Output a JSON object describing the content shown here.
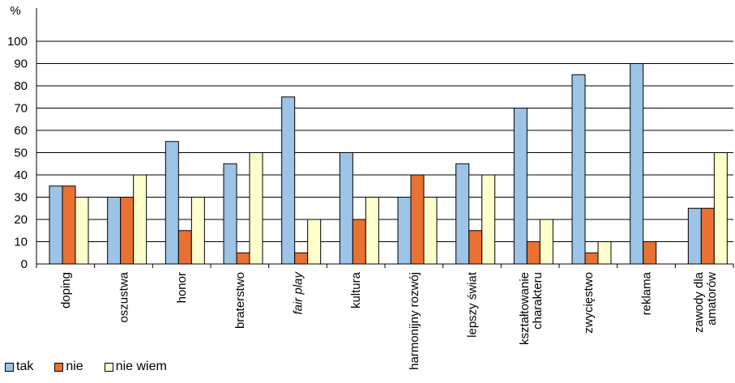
{
  "chart_data": {
    "type": "bar",
    "unit_label": "%",
    "ylim": [
      0,
      100
    ],
    "yticks": [
      0,
      10,
      20,
      30,
      40,
      50,
      60,
      70,
      80,
      90,
      100
    ],
    "grid": true,
    "legend_position": "bottom-left",
    "categories": [
      {
        "label": "doping",
        "italic": false
      },
      {
        "label": "oszustwa",
        "italic": false
      },
      {
        "label": "honor",
        "italic": false
      },
      {
        "label": "braterstwo",
        "italic": false
      },
      {
        "label": "fair play",
        "italic": true
      },
      {
        "label": "kultura",
        "italic": false
      },
      {
        "label": "harmonijny rozwój",
        "italic": false
      },
      {
        "label": "lepszy świat",
        "italic": false
      },
      {
        "label": "kształtowanie charakteru",
        "italic": false
      },
      {
        "label": "zwycięstwo",
        "italic": false
      },
      {
        "label": "reklama",
        "italic": false
      },
      {
        "label": "zawody dla amatorów",
        "italic": false
      }
    ],
    "series": [
      {
        "name": "tak",
        "color": "#9DC3E6",
        "values": [
          35,
          30,
          55,
          45,
          75,
          50,
          30,
          45,
          70,
          85,
          90,
          25
        ]
      },
      {
        "name": "nie",
        "color": "#E97132",
        "values": [
          35,
          30,
          15,
          5,
          5,
          20,
          40,
          15,
          10,
          5,
          10,
          25
        ]
      },
      {
        "name": "nie wiem",
        "color": "#FFFFCC",
        "values": [
          30,
          40,
          30,
          50,
          20,
          30,
          30,
          40,
          20,
          10,
          0,
          50
        ]
      }
    ]
  }
}
